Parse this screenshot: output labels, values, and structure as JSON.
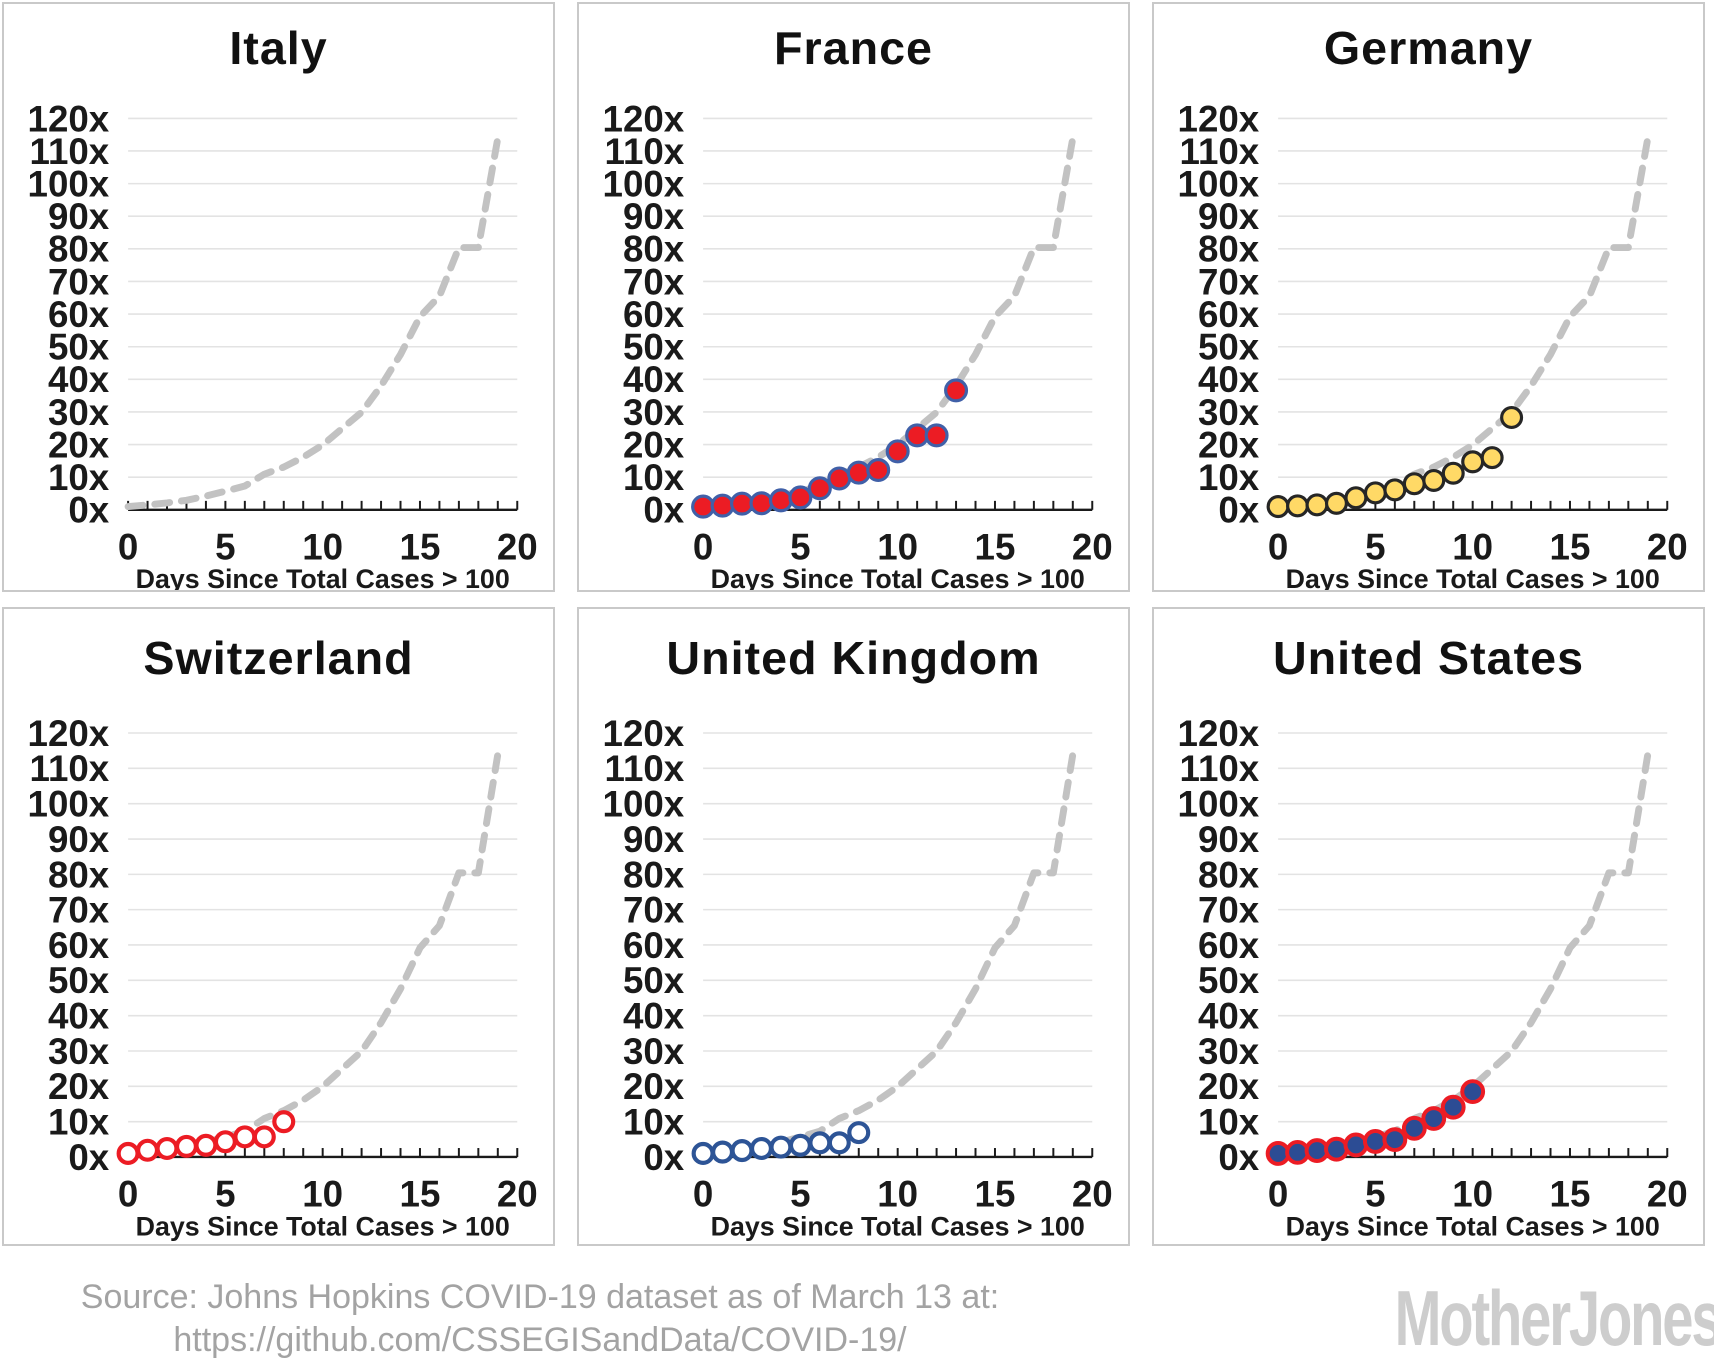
{
  "footer": {
    "source_line1": "Source: Johns Hopkins COVID-19 dataset as of March 13 at:",
    "source_line2": "https://github.com/CSSEGISandData/COVID-19/",
    "logo_text": "MotherJones"
  },
  "colors": {
    "grid_line": "#e3e3e3",
    "axis_line": "#1a1a1a",
    "reference_dash": "#c2c2c2",
    "panel_border": "#c9c9c9",
    "red": "#ec1c24",
    "blue": "#3a5ca8",
    "navy": "#2c4c94",
    "gold": "#ffd966",
    "source_text": "#a3a3a3",
    "logo_gray": "#cdcdcd"
  },
  "chart_data": {
    "type": "scatter",
    "layout": "2 rows x 3 columns small multiples",
    "axes": {
      "xlabel": "Days Since Total Cases > 100",
      "xlim": [
        0,
        20
      ],
      "ylim": [
        0,
        120
      ],
      "x_tick_labels": [
        "0",
        "5",
        "10",
        "15",
        "20"
      ],
      "x_minor_tick_interval": 1,
      "y_tick_labels": [
        "0x",
        "10x",
        "20x",
        "30x",
        "40x",
        "50x",
        "60x",
        "70x",
        "80x",
        "90x",
        "100x",
        "110x",
        "120x"
      ],
      "grid": "horizontal gridlines every 10x"
    },
    "reference_curve": {
      "name": "Italy trajectory (gray dashed curve repeated in every panel)",
      "x": [
        0,
        1,
        2,
        3,
        4,
        5,
        6,
        7,
        8,
        9,
        10,
        11,
        12,
        13,
        14,
        15,
        16,
        17,
        18,
        19
      ],
      "y": [
        1,
        1.5,
        2.1,
        2.9,
        4.2,
        5.7,
        7.3,
        10.9,
        13.1,
        16.1,
        19.9,
        24.9,
        29.9,
        38.0,
        47.6,
        59.2,
        65.5,
        80.4,
        80.4,
        113.9
      ]
    },
    "panels": [
      {
        "title": "Italy",
        "marker": "none",
        "note": "dashed reference curve only",
        "points_x": [],
        "points_y": []
      },
      {
        "title": "France",
        "marker": {
          "fill": "#ec1c24",
          "stroke": "#4060a8",
          "stroke_width": 3.2,
          "r": 10.5
        },
        "points_x": [
          0,
          1,
          2,
          3,
          4,
          5,
          6,
          7,
          8,
          9,
          10,
          11,
          12,
          13
        ],
        "points_y": [
          1,
          1.3,
          1.9,
          2.0,
          2.9,
          3.8,
          6.6,
          9.6,
          11.4,
          12.2,
          17.9,
          22.8,
          22.8,
          36.6
        ]
      },
      {
        "title": "Germany",
        "marker": {
          "fill": "#ffd966",
          "stroke": "#262626",
          "stroke_width": 3.2,
          "r": 10
        },
        "points_x": [
          0,
          1,
          2,
          3,
          4,
          5,
          6,
          7,
          8,
          9,
          10,
          11,
          12
        ],
        "points_y": [
          1,
          1.2,
          1.5,
          2.0,
          3.7,
          5.2,
          6.1,
          8.0,
          9.0,
          11.2,
          14.7,
          16.0,
          28.3
        ]
      },
      {
        "title": "Switzerland",
        "marker": {
          "fill": "#ffffff",
          "stroke": "#ec1c24",
          "stroke_width": 4.2,
          "r": 9.5
        },
        "points_x": [
          0,
          1,
          2,
          3,
          4,
          5,
          6,
          7,
          8
        ],
        "points_y": [
          1,
          1.9,
          2.4,
          3.0,
          3.3,
          4.3,
          5.7,
          5.7,
          10.0
        ]
      },
      {
        "title": "United Kingdom",
        "marker": {
          "fill": "#ffffff",
          "stroke": "#2d5496",
          "stroke_width": 4.2,
          "r": 9.5
        },
        "points_x": [
          0,
          1,
          2,
          3,
          4,
          5,
          6,
          7,
          8
        ],
        "points_y": [
          1,
          1.4,
          1.8,
          2.4,
          2.8,
          3.3,
          4.0,
          4.0,
          6.9
        ]
      },
      {
        "title": "United States",
        "marker": {
          "fill": "#2c4c94",
          "stroke": "#ec1c24",
          "stroke_width": 4.0,
          "r": 10.5
        },
        "points_x": [
          0,
          1,
          2,
          3,
          4,
          5,
          6,
          7,
          8,
          9,
          10
        ],
        "points_y": [
          1,
          1.3,
          1.8,
          2.2,
          3.4,
          4.4,
          4.9,
          8.1,
          10.9,
          14.1,
          18.5
        ]
      }
    ]
  }
}
